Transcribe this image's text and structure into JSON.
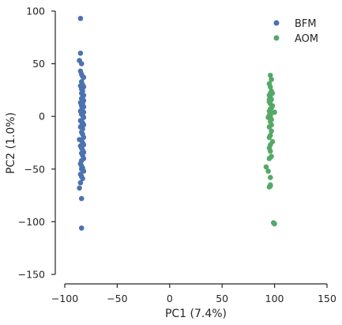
{
  "chart_data": {
    "type": "scatter",
    "title": "",
    "xlabel": "PC1 (7.4%)",
    "ylabel": "PC2 (1.0%)",
    "xlim": [
      -100,
      150
    ],
    "ylim": [
      -150,
      100
    ],
    "xticks": [
      -100,
      -50,
      0,
      50,
      100,
      150
    ],
    "yticks": [
      -150,
      -100,
      -50,
      0,
      50,
      100
    ],
    "xtick_labels": [
      "−100",
      "−50",
      "0",
      "50",
      "100",
      "150"
    ],
    "ytick_labels": [
      "−150",
      "−100",
      "−50",
      "0",
      "50",
      "100"
    ],
    "grid": false,
    "legend_position": "top-right",
    "series": [
      {
        "name": "BFM",
        "color": "#4c72b0",
        "x": [
          -85,
          -85,
          -86,
          -84,
          -85,
          -84,
          -83,
          -82,
          -84,
          -83,
          -85,
          -82,
          -84,
          -83,
          -84,
          -82,
          -83,
          -84,
          -82,
          -85,
          -83,
          -84,
          -82,
          -83,
          -84,
          -85,
          -82,
          -84,
          -83,
          -82,
          -85,
          -84,
          -83,
          -82,
          -84,
          -85,
          -83,
          -84,
          -83,
          -82,
          -86,
          -84,
          -83,
          -82,
          -85,
          -84,
          -83,
          -82,
          -84,
          -83,
          -82,
          -84,
          -85,
          -84,
          -83,
          -84,
          -82,
          -85,
          -84,
          -83,
          -85,
          -86,
          -84,
          -84
        ],
        "y": [
          93,
          60,
          53,
          50,
          43,
          40,
          38,
          37,
          33,
          30,
          29,
          28,
          26,
          24,
          22,
          20,
          18,
          17,
          15,
          13,
          12,
          10,
          9,
          8,
          6,
          5,
          4,
          2,
          1,
          -1,
          -4,
          -5,
          -6,
          -8,
          -9,
          -10,
          -12,
          -15,
          -17,
          -20,
          -22,
          -23,
          -25,
          -27,
          -28,
          -30,
          -32,
          -34,
          -35,
          -37,
          -40,
          -42,
          -45,
          -47,
          -49,
          -50,
          -52,
          -55,
          -57,
          -59,
          -63,
          -68,
          -78,
          -106
        ]
      },
      {
        "name": "AOM",
        "color": "#55a868",
        "x": [
          96,
          97,
          95,
          96,
          97,
          98,
          95,
          96,
          97,
          95,
          96,
          98,
          97,
          96,
          95,
          96,
          97,
          95,
          96,
          94,
          97,
          96,
          100,
          95,
          96,
          97,
          95,
          97,
          96,
          95,
          98,
          96,
          95,
          96,
          97,
          95,
          92,
          94,
          96,
          96,
          95,
          96,
          99,
          100
        ],
        "y": [
          39,
          35,
          31,
          28,
          24,
          22,
          20,
          18,
          16,
          14,
          12,
          10,
          8,
          7,
          5,
          4,
          3,
          1,
          0,
          -1,
          -3,
          -5,
          4,
          16,
          22,
          -8,
          -10,
          -14,
          -18,
          -20,
          -24,
          -27,
          -30,
          -33,
          -38,
          -40,
          -48,
          -52,
          -58,
          -66,
          -67,
          -65,
          -101,
          -102
        ]
      }
    ]
  }
}
